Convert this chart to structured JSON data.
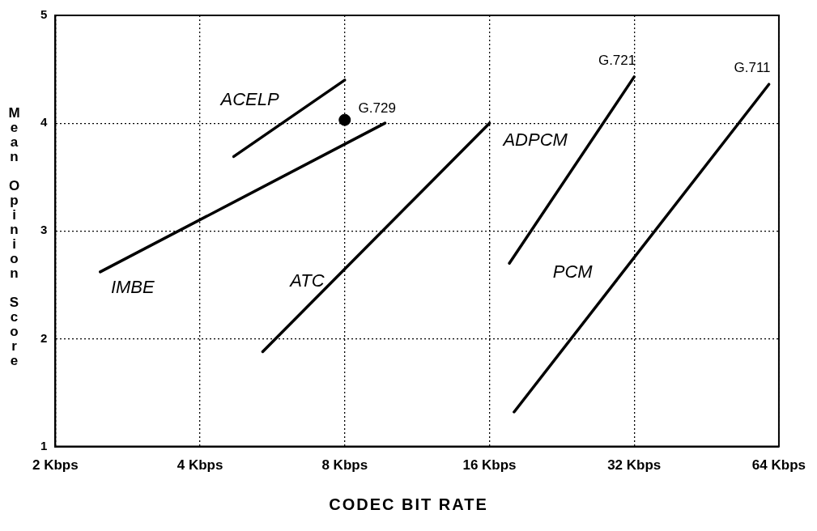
{
  "chart_data": {
    "type": "line",
    "xlabel": "CODEC BIT RATE",
    "ylabel": "Mean Opinion Score",
    "log": "x",
    "xlim": [
      2,
      64
    ],
    "xticks": [
      {
        "value": 2,
        "label": "2 Kbps"
      },
      {
        "value": 4,
        "label": "4 Kbps"
      },
      {
        "value": 8,
        "label": "8 Kbps"
      },
      {
        "value": 16,
        "label": "16 Kbps"
      },
      {
        "value": 32,
        "label": "32 Kbps"
      },
      {
        "value": 64,
        "label": "64 Kbps"
      }
    ],
    "ylim": [
      1,
      5
    ],
    "yticks": [
      1,
      2,
      3,
      4,
      5
    ],
    "grid": true,
    "legend": false,
    "series": [
      {
        "name": "IMBE",
        "marker": "none",
        "color": "#000000",
        "x": [
          2.48,
          9.7
        ],
        "values": [
          2.62,
          4.0
        ]
      },
      {
        "name": "ACELP",
        "marker": "none",
        "color": "#000000",
        "x": [
          4.7,
          8
        ],
        "values": [
          3.69,
          4.4
        ]
      },
      {
        "name": "ATC",
        "marker": "none",
        "color": "#000000",
        "x": [
          5.4,
          16
        ],
        "values": [
          1.88,
          4.0
        ]
      },
      {
        "name": "ADPCM",
        "marker": "none",
        "color": "#000000",
        "x": [
          17.6,
          32
        ],
        "values": [
          2.7,
          4.43
        ]
      },
      {
        "name": "PCM",
        "marker": "none",
        "color": "#000000",
        "x": [
          18,
          61
        ],
        "values": [
          1.32,
          4.36
        ]
      },
      {
        "name": "G.729",
        "type": "scatter",
        "marker": "circle",
        "color": "#000000",
        "x": [
          8
        ],
        "values": [
          4.03
        ]
      }
    ],
    "annotations": [
      {
        "text": "G.721",
        "x": 32,
        "y": 4.43
      },
      {
        "text": "G.711",
        "x": 61,
        "y": 4.36
      }
    ]
  }
}
